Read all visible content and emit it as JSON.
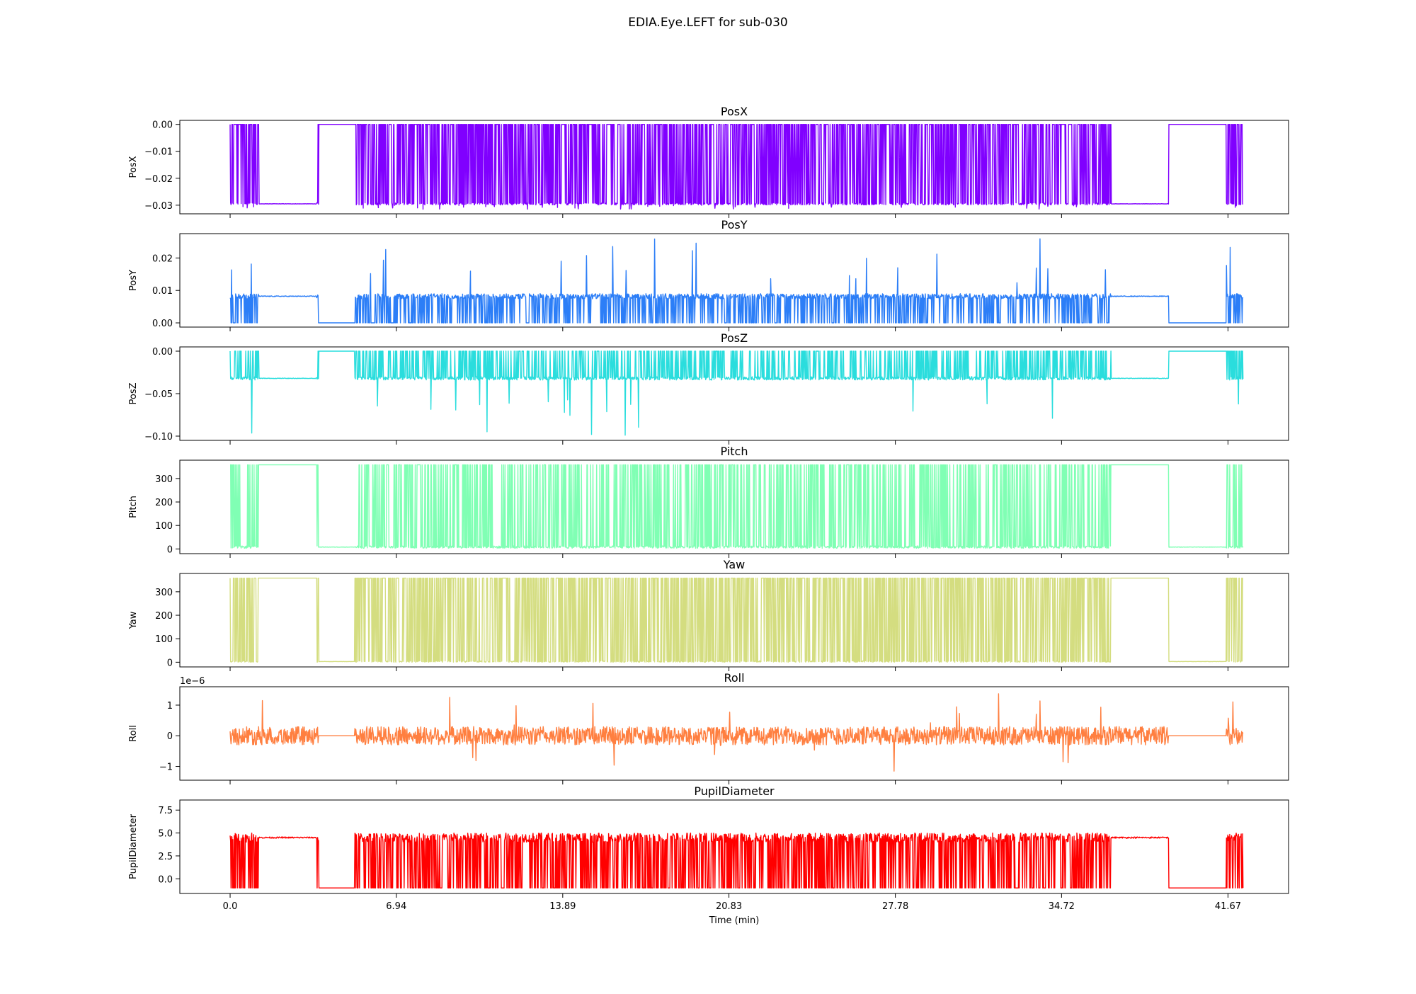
{
  "figure": {
    "title": "EDIA.Eye.LEFT for sub-030"
  },
  "chart_data": {
    "type": "line",
    "x_label": "Time (min)",
    "x_ticks": [
      "0.0",
      "6.94",
      "13.89",
      "20.83",
      "27.78",
      "34.72",
      "41.67"
    ],
    "x_tick_values": [
      0.0,
      6.94,
      13.89,
      20.83,
      27.78,
      34.72,
      41.67
    ],
    "xlim": [
      -2.1,
      44.2
    ],
    "data_x_range": [
      0.0,
      42.3
    ],
    "subplots": [
      {
        "title": "PosX",
        "ylabel": "PosX",
        "color": "#8000ff",
        "ylim": [
          -0.0332,
          0.0015
        ],
        "yticks": [
          0.0,
          -0.01,
          -0.02,
          -0.03
        ],
        "ytick_labels": [
          "0.00",
          "−0.01",
          "−0.02",
          "−0.03"
        ],
        "offset_text": "",
        "baseline": -0.0295,
        "dropout_value": 0.0,
        "dropout_rate": 0.55,
        "noise": 0.0004,
        "spike_rate": 0.02,
        "spike_min": -0.0315,
        "spike_max": -0.03,
        "dropout_regions": [
          [
            3.7,
            5.2
          ],
          [
            39.2,
            41.6
          ]
        ],
        "smooth_regions": [
          [
            1.2,
            3.6
          ],
          [
            36.8,
            39.2
          ]
        ]
      },
      {
        "title": "PosY",
        "ylabel": "PosY",
        "color": "#2c7ef7",
        "ylim": [
          -0.0013,
          0.0275
        ],
        "yticks": [
          0.0,
          0.01,
          0.02
        ],
        "ytick_labels": [
          "0.00",
          "0.01",
          "0.02"
        ],
        "offset_text": "",
        "baseline": 0.0082,
        "dropout_value": 0.0,
        "dropout_rate": 0.3,
        "noise": 0.0008,
        "spike_rate": 0.012,
        "spike_min": 0.012,
        "spike_max": 0.026,
        "dropout_regions": [
          [
            3.7,
            5.2
          ],
          [
            39.2,
            41.6
          ]
        ],
        "smooth_regions": [
          [
            1.2,
            3.6
          ],
          [
            36.8,
            39.2
          ]
        ]
      },
      {
        "title": "PosZ",
        "ylabel": "PosZ",
        "color": "#2adddd",
        "ylim": [
          -0.105,
          0.005
        ],
        "yticks": [
          0.0,
          -0.05,
          -0.1
        ],
        "ytick_labels": [
          "0.00",
          "−0.05",
          "−0.10"
        ],
        "offset_text": "",
        "baseline": -0.032,
        "dropout_value": 0.0,
        "dropout_rate": 0.3,
        "noise": 0.002,
        "spike_rate": 0.015,
        "spike_min": -0.1,
        "spike_max": -0.05,
        "dropout_regions": [
          [
            3.7,
            5.2
          ],
          [
            39.2,
            41.6
          ]
        ],
        "smooth_regions": [
          [
            1.2,
            3.6
          ],
          [
            36.8,
            39.2
          ]
        ]
      },
      {
        "title": "Pitch",
        "ylabel": "Pitch",
        "color": "#80ffb4",
        "ylim": [
          -20,
          378
        ],
        "yticks": [
          0,
          100,
          200,
          300
        ],
        "ytick_labels": [
          "0",
          "100",
          "200",
          "300"
        ],
        "offset_text": "",
        "baseline": 8,
        "dropout_value": 358,
        "dropout_rate": 0.32,
        "noise": 5,
        "spike_rate": 0.0,
        "spike_min": 0,
        "spike_max": 0,
        "dropout_regions": [
          [
            1.2,
            3.6
          ],
          [
            36.8,
            39.2
          ]
        ],
        "smooth_regions": [
          [
            3.7,
            5.2
          ],
          [
            39.2,
            41.6
          ]
        ]
      },
      {
        "title": "Yaw",
        "ylabel": "Yaw",
        "color": "#d4dd80",
        "ylim": [
          -20,
          378
        ],
        "yticks": [
          0,
          100,
          200,
          300
        ],
        "ytick_labels": [
          "0",
          "100",
          "200",
          "300"
        ],
        "offset_text": "",
        "baseline": 3,
        "dropout_value": 358,
        "dropout_rate": 0.5,
        "noise": 3,
        "spike_rate": 0.0,
        "spike_min": 0,
        "spike_max": 0,
        "dropout_regions": [
          [
            1.2,
            3.6
          ],
          [
            36.8,
            39.2
          ]
        ],
        "smooth_regions": [
          [
            3.7,
            5.2
          ],
          [
            39.2,
            41.6
          ]
        ]
      },
      {
        "title": "Roll",
        "ylabel": "Roll",
        "color": "#ff7f40",
        "ylim": [
          -1.45e-06,
          1.6e-06
        ],
        "yticks": [
          -1e-06,
          0,
          1e-06
        ],
        "ytick_labels": [
          "−1",
          "0",
          "1"
        ],
        "offset_text": "1e−6",
        "baseline": 0,
        "dropout_value": 0,
        "dropout_rate": 0.0,
        "noise": 3e-07,
        "spike_rate": 0.02,
        "spike_min": -1.2e-06,
        "spike_max": 1.4e-06,
        "dropout_regions": [
          [
            3.7,
            5.2
          ],
          [
            39.2,
            41.6
          ]
        ],
        "smooth_regions": [
          [
            3.7,
            5.2
          ],
          [
            39.2,
            41.6
          ]
        ]
      },
      {
        "title": "PupilDiameter",
        "ylabel": "PupilDiameter",
        "color": "#ff0000",
        "ylim": [
          -1.6,
          8.6
        ],
        "yticks": [
          0.0,
          2.5,
          5.0,
          7.5
        ],
        "ytick_labels": [
          "0.0",
          "2.5",
          "5.0",
          "7.5"
        ],
        "offset_text": "",
        "baseline": 4.5,
        "dropout_value": -1,
        "dropout_rate": 0.35,
        "noise": 0.5,
        "spike_rate": 0.0,
        "spike_min": 0,
        "spike_max": 0,
        "dropout_regions": [
          [
            3.7,
            5.2
          ],
          [
            39.2,
            41.6
          ]
        ],
        "smooth_regions": [
          [
            1.2,
            3.6
          ],
          [
            36.8,
            39.2
          ]
        ]
      }
    ]
  }
}
